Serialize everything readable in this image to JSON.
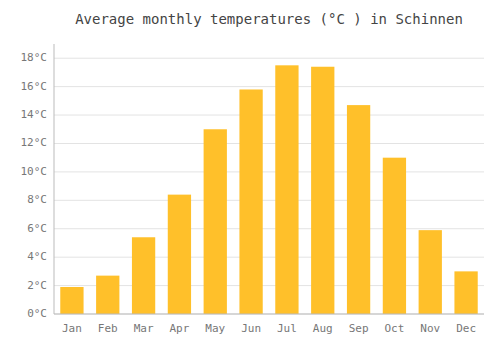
{
  "chart_data": {
    "type": "bar",
    "title": "Average monthly temperatures (°C ) in Schinnen",
    "categories": [
      "Jan",
      "Feb",
      "Mar",
      "Apr",
      "May",
      "Jun",
      "Jul",
      "Aug",
      "Sep",
      "Oct",
      "Nov",
      "Dec"
    ],
    "values": [
      1.9,
      2.7,
      5.4,
      8.4,
      13.0,
      15.8,
      17.5,
      17.4,
      14.7,
      11.0,
      5.9,
      3.0
    ],
    "color": "#FFC02A",
    "ylim": [
      0,
      19
    ],
    "yticks": [
      {
        "value": 0,
        "label": "0°C"
      },
      {
        "value": 2,
        "label": "2°C"
      },
      {
        "value": 4,
        "label": "4°C"
      },
      {
        "value": 6,
        "label": "6°C"
      },
      {
        "value": 8,
        "label": "8°C"
      },
      {
        "value": 10,
        "label": "10°C"
      },
      {
        "value": 12,
        "label": "12°C"
      },
      {
        "value": 14,
        "label": "14°C"
      },
      {
        "value": 16,
        "label": "16°C"
      },
      {
        "value": 18,
        "label": "18°C"
      }
    ],
    "grid": true
  }
}
